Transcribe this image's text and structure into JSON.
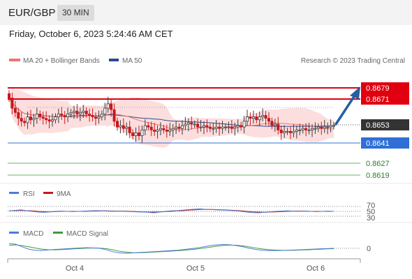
{
  "header": {
    "symbol": "EUR/GBP",
    "timeframe": "30 MIN",
    "datetime": "Friday, October 6, 2023 5:24:46 AM CET"
  },
  "legend": {
    "ma20": "MA 20 + Bollinger Bands",
    "ma50": "MA 50",
    "copyright": "Research © 2023 Trading Central",
    "rsi": "RSI",
    "rsi_ma": "9MA",
    "macd": "MACD",
    "macd_signal": "MACD Signal"
  },
  "colors": {
    "resistance": "#e0000f",
    "support": "#2f6fd6",
    "support_extra": "#3e9a3e",
    "current": "#333333",
    "ma20": "#e8776f",
    "ma50": "#2a4a8e",
    "bands": "#fbd6d6",
    "arrow": "#235ea8",
    "candle_up": "#3a3a3a",
    "candle_down": "#c8171d",
    "rsi": "#4d7bd6",
    "rsi_ma": "#c8171d",
    "macd": "#4d7bd6",
    "macd_signal": "#3e9a3e"
  },
  "chart_data": {
    "type": "candlestick",
    "ylim": [
      0.8612,
      0.8684
    ],
    "resistance_levels": [
      "0.8679",
      "0.8671"
    ],
    "current_price": "0.8653",
    "pivot_level": "0.8641",
    "support_levels": [
      "0.8627",
      "0.8619"
    ],
    "x_tick_labels": [
      "Oct 4",
      "Oct 5",
      "Oct 6"
    ],
    "closes": [
      0.8672,
      0.8665,
      0.8662,
      0.8658,
      0.8656,
      0.8655,
      0.8659,
      0.8657,
      0.8658,
      0.8661,
      0.8659,
      0.8658,
      0.8657,
      0.8656,
      0.8657,
      0.8659,
      0.8661,
      0.866,
      0.8659,
      0.8661,
      0.8662,
      0.8663,
      0.8661,
      0.8662,
      0.8663,
      0.8661,
      0.866,
      0.8659,
      0.8658,
      0.8659,
      0.8661,
      0.8665,
      0.8668,
      0.8664,
      0.8656,
      0.8652,
      0.8653,
      0.8651,
      0.8652,
      0.8648,
      0.8646,
      0.8648,
      0.8646,
      0.865,
      0.8653,
      0.8652,
      0.865,
      0.8649,
      0.865,
      0.8651,
      0.865,
      0.8649,
      0.865,
      0.8651,
      0.8652,
      0.8651,
      0.8653,
      0.8654,
      0.8655,
      0.8654,
      0.8654,
      0.8652,
      0.8652,
      0.8653,
      0.8652,
      0.8651,
      0.8651,
      0.8652,
      0.8651,
      0.8652,
      0.8652,
      0.8652,
      0.8651,
      0.8652,
      0.8653,
      0.8652,
      0.8656,
      0.8659,
      0.8658,
      0.8659,
      0.8657,
      0.8659,
      0.866,
      0.8658,
      0.8656,
      0.8653,
      0.8654,
      0.865,
      0.8648,
      0.8649,
      0.8649,
      0.8648,
      0.8649,
      0.865,
      0.865,
      0.8651,
      0.865,
      0.865,
      0.8651,
      0.8651,
      0.8652,
      0.8651,
      0.8652,
      0.8652,
      0.8653,
      0.8653
    ],
    "rsi": [
      52,
      54,
      56,
      53,
      50,
      47,
      46,
      48,
      50,
      51,
      50,
      49,
      50,
      51,
      52,
      53,
      52,
      51,
      50,
      51,
      50,
      49,
      48,
      47,
      46,
      44,
      47,
      50,
      52,
      53,
      55,
      57,
      59,
      60,
      58,
      57,
      56,
      55,
      54,
      53,
      50,
      47,
      45,
      44,
      46,
      48,
      50,
      51,
      52,
      51,
      50,
      51,
      50,
      49,
      50,
      51,
      50
    ],
    "rsi_ma": [
      53,
      53,
      54,
      53,
      52,
      50,
      49,
      48,
      49,
      50,
      50,
      50,
      50,
      50,
      51,
      51,
      52,
      52,
      51,
      51,
      51,
      50,
      49,
      48,
      47,
      47,
      48,
      49,
      50,
      52,
      53,
      55,
      56,
      58,
      58,
      58,
      57,
      56,
      55,
      54,
      52,
      50,
      48,
      47,
      46,
      47,
      48,
      49,
      50,
      51,
      51,
      51,
      50,
      50,
      50,
      50,
      50
    ],
    "macd": [
      0.6,
      0.55,
      0.2,
      -0.1,
      -0.25,
      -0.3,
      -0.22,
      -0.15,
      -0.1,
      -0.05,
      0.0,
      0.05,
      0.08,
      0.05,
      0.0,
      -0.2,
      -0.45,
      -0.6,
      -0.65,
      -0.6,
      -0.55,
      -0.5,
      -0.45,
      -0.4,
      -0.35,
      -0.3,
      -0.25,
      -0.15,
      -0.05,
      0.05,
      0.2,
      0.35,
      0.45,
      0.5,
      0.45,
      0.35,
      0.2,
      0.0,
      -0.15,
      -0.25,
      -0.3,
      -0.3,
      -0.28,
      -0.25,
      -0.22,
      -0.18,
      -0.14,
      -0.1,
      -0.06,
      -0.03,
      0.0
    ],
    "macd_signal": [
      0.4,
      0.45,
      0.35,
      0.2,
      0.05,
      -0.1,
      -0.18,
      -0.2,
      -0.17,
      -0.12,
      -0.07,
      -0.02,
      0.02,
      0.04,
      0.02,
      -0.05,
      -0.2,
      -0.38,
      -0.5,
      -0.57,
      -0.58,
      -0.55,
      -0.5,
      -0.46,
      -0.41,
      -0.36,
      -0.31,
      -0.25,
      -0.17,
      -0.08,
      0.03,
      0.15,
      0.28,
      0.38,
      0.42,
      0.4,
      0.32,
      0.18,
      0.04,
      -0.08,
      -0.17,
      -0.23,
      -0.26,
      -0.26,
      -0.25,
      -0.22,
      -0.19,
      -0.15,
      -0.11,
      -0.07,
      -0.04
    ],
    "rsi_levels": [
      "70",
      "50",
      "30"
    ],
    "macd_zero": "0"
  }
}
